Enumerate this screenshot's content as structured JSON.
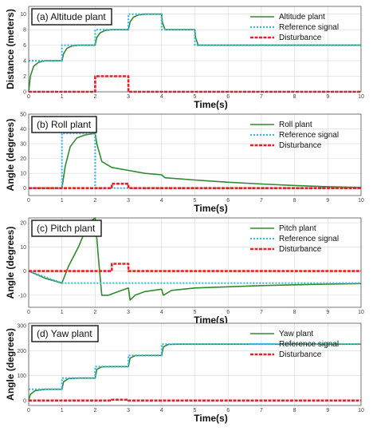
{
  "colors": {
    "plant": "#2e8b2e",
    "reference": "#35b8e8",
    "disturbance": "#e8202a",
    "grid": "#d8d8d8",
    "axis": "#555555"
  },
  "chart_data": [
    {
      "type": "line",
      "title": "(a) Altitude plant",
      "xlabel": "Time(s)",
      "ylabel": "Distance (meters)",
      "xlim": [
        0,
        10
      ],
      "ylim": [
        0,
        11
      ],
      "xticks": [
        0,
        1,
        2,
        3,
        4,
        5,
        6,
        7,
        8,
        9,
        10
      ],
      "yticks": [
        0,
        2,
        4,
        6,
        8,
        10
      ],
      "grid": true,
      "legend": "top-right",
      "series": [
        {
          "name": "Altitude plant",
          "style": "solid",
          "color": "plant",
          "x": [
            0,
            0.05,
            0.15,
            0.3,
            0.5,
            1.0,
            1.05,
            1.15,
            1.3,
            1.5,
            2.0,
            2.05,
            2.15,
            2.3,
            2.5,
            3.0,
            3.05,
            3.15,
            3.3,
            3.5,
            4.0,
            4.02,
            4.1,
            5.0,
            5.02,
            5.1,
            10
          ],
          "y": [
            0,
            2.0,
            3.3,
            3.8,
            4.0,
            4.0,
            4.9,
            5.6,
            5.9,
            6.0,
            6.0,
            7.0,
            7.6,
            7.9,
            8.0,
            8.0,
            9.0,
            9.6,
            9.9,
            10.0,
            10.0,
            9.0,
            8.0,
            8.0,
            7.0,
            6.0,
            6.0
          ]
        },
        {
          "name": "Reference signal",
          "style": "dotted",
          "color": "reference",
          "x": [
            0,
            1,
            1,
            2,
            2,
            3,
            3,
            4,
            4,
            5,
            5,
            10
          ],
          "y": [
            4,
            4,
            6,
            6,
            8,
            8,
            10,
            10,
            8,
            8,
            6,
            6
          ]
        },
        {
          "name": "Disturbance",
          "style": "dashed",
          "color": "disturbance",
          "x": [
            0,
            2,
            2,
            3,
            3,
            10
          ],
          "y": [
            0,
            0,
            2,
            2,
            0,
            0
          ]
        }
      ]
    },
    {
      "type": "line",
      "title": "(b) Roll plant",
      "xlabel": "Time(s)",
      "ylabel": "Angle (degrees)",
      "xlim": [
        0,
        10
      ],
      "ylim": [
        -5,
        50
      ],
      "xticks": [
        0,
        1,
        2,
        3,
        4,
        5,
        6,
        7,
        8,
        9,
        10
      ],
      "yticks": [
        0,
        10,
        20,
        30,
        40,
        50
      ],
      "grid": true,
      "legend": "top-right",
      "series": [
        {
          "name": "Roll plant",
          "style": "solid",
          "color": "plant",
          "x": [
            0,
            1.0,
            1.1,
            1.25,
            1.45,
            1.7,
            2.0,
            2.05,
            2.2,
            2.5,
            3.0,
            3.5,
            4.0,
            4.1,
            5.0,
            6.0,
            7.0,
            8.0,
            9.0,
            10
          ],
          "y": [
            0,
            0,
            15,
            28,
            34,
            36,
            37,
            30,
            18,
            14,
            12,
            10,
            9,
            7,
            5.5,
            4.0,
            2.8,
            1.8,
            1.0,
            0.5
          ]
        },
        {
          "name": "Reference signal",
          "style": "dotted",
          "color": "reference",
          "x": [
            0,
            1,
            1,
            2,
            2,
            10
          ],
          "y": [
            0,
            0,
            37,
            37,
            0,
            0
          ]
        },
        {
          "name": "Disturbance",
          "style": "dashed",
          "color": "disturbance",
          "x": [
            0,
            2.5,
            2.5,
            3,
            3,
            10
          ],
          "y": [
            0,
            0,
            3,
            3,
            0,
            0
          ]
        }
      ]
    },
    {
      "type": "line",
      "title": "(c) Pitch plant",
      "xlabel": "Time(s)",
      "ylabel": "Angle (degrees)",
      "xlim": [
        0,
        10
      ],
      "ylim": [
        -15,
        22
      ],
      "xticks": [
        0,
        1,
        2,
        3,
        4,
        5,
        6,
        7,
        8,
        9,
        10
      ],
      "yticks": [
        -10,
        0,
        10,
        20
      ],
      "grid": true,
      "legend": "top-right",
      "series": [
        {
          "name": "Pitch plant",
          "style": "solid",
          "color": "plant",
          "x": [
            0,
            0.5,
            1.0,
            1.2,
            1.5,
            1.8,
            2.0,
            2.1,
            2.2,
            2.4,
            2.6,
            3.0,
            3.05,
            3.2,
            3.5,
            4.0,
            4.05,
            4.3,
            5.0,
            6.0,
            7.0,
            8.0,
            9.0,
            10
          ],
          "y": [
            0,
            -3,
            -5,
            2,
            10,
            20,
            22,
            5,
            -10,
            -10,
            -9,
            -7,
            -12,
            -10,
            -8.5,
            -7.5,
            -10,
            -8,
            -7,
            -6.5,
            -6,
            -5.7,
            -5.4,
            -5.2
          ]
        },
        {
          "name": "Reference signal",
          "style": "dotted",
          "color": "reference",
          "x": [
            0,
            0.4,
            1.0,
            10
          ],
          "y": [
            0,
            -2,
            -5,
            -5
          ]
        },
        {
          "name": "Disturbance",
          "style": "dashed",
          "color": "disturbance",
          "x": [
            0,
            2.5,
            2.5,
            3,
            3,
            10
          ],
          "y": [
            0,
            0,
            3,
            3,
            0,
            0
          ]
        }
      ]
    },
    {
      "type": "line",
      "title": "(d) Yaw plant",
      "xlabel": "Time(s)",
      "ylabel": "Angle (degrees)",
      "xlim": [
        0,
        10
      ],
      "ylim": [
        -20,
        310
      ],
      "xticks": [
        0,
        1,
        2,
        3,
        4,
        5,
        6,
        7,
        8,
        9,
        10
      ],
      "yticks": [
        0,
        100,
        200,
        300
      ],
      "grid": true,
      "legend": "top-right",
      "series": [
        {
          "name": "Yaw plant",
          "style": "solid",
          "color": "plant",
          "x": [
            0,
            0.05,
            0.2,
            0.5,
            1.0,
            1.05,
            1.2,
            1.5,
            2.0,
            2.05,
            2.2,
            2.5,
            3.0,
            3.05,
            3.2,
            3.5,
            4.0,
            4.05,
            4.2,
            4.5,
            10
          ],
          "y": [
            0,
            25,
            40,
            45,
            45,
            75,
            88,
            90,
            90,
            125,
            135,
            136,
            136,
            170,
            180,
            181,
            181,
            215,
            225,
            226,
            226
          ]
        },
        {
          "name": "Reference signal",
          "style": "dotted",
          "color": "reference",
          "x": [
            0,
            1,
            1,
            2,
            2,
            3,
            3,
            4,
            4,
            10
          ],
          "y": [
            45,
            45,
            90,
            90,
            136,
            136,
            181,
            181,
            226,
            226
          ]
        },
        {
          "name": "Disturbance",
          "style": "dashed",
          "color": "disturbance",
          "x": [
            0,
            2.5,
            2.5,
            3,
            3,
            10
          ],
          "y": [
            0,
            0,
            3,
            3,
            0,
            0
          ]
        }
      ]
    }
  ]
}
